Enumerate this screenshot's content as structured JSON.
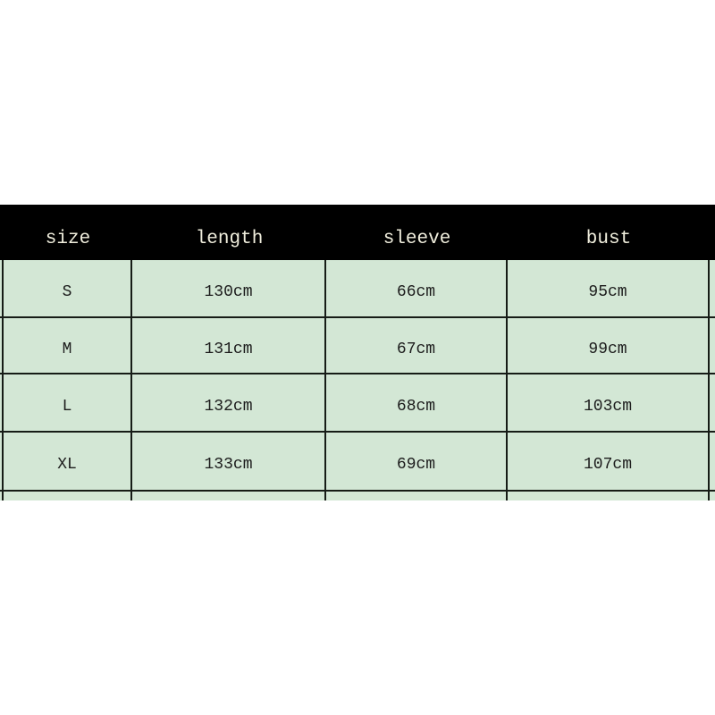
{
  "chart_data": {
    "type": "table",
    "columns": [
      "size",
      "length",
      "sleeve",
      "bust"
    ],
    "rows": [
      [
        "S",
        "130cm",
        "66cm",
        "95cm"
      ],
      [
        "M",
        "131cm",
        "67cm",
        "99cm"
      ],
      [
        "L",
        "132cm",
        "68cm",
        "103cm"
      ],
      [
        "XL",
        "133cm",
        "69cm",
        "107cm"
      ]
    ],
    "layout": {
      "header_position": "top",
      "grid": true,
      "table_cropped_left_right": true,
      "fifth_row_cropped_at_bottom": true
    }
  },
  "colors": {
    "page_bg": "#ffffff",
    "header_bg": "#000000",
    "header_text": "#f0eedd",
    "row_bg": "#d3e7d5",
    "grid_line": "#161c16",
    "cell_text": "#1c1c1c"
  }
}
